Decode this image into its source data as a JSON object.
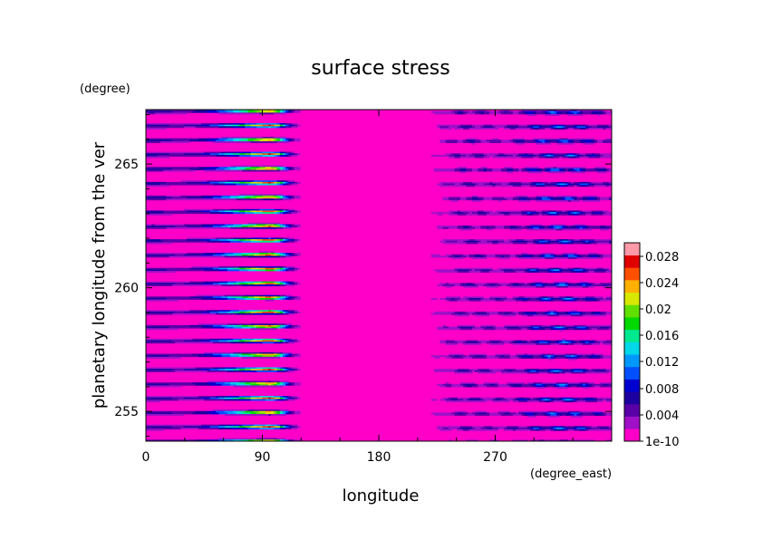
{
  "chart_data": {
    "type": "heatmap",
    "title": "surface stress",
    "xlabel": "longitude",
    "xunit": "(degree_east)",
    "ylabel": "planetary longitude from the ver",
    "yunit": "(degree)",
    "xlim": [
      0,
      360
    ],
    "ylim": [
      253.8,
      267.2
    ],
    "xticks": [
      0,
      90,
      180,
      270
    ],
    "yticks": [
      255,
      260,
      265
    ],
    "colorbar": {
      "ticks": [
        "0.028",
        "0.024",
        "0.02",
        "0.016",
        "0.012",
        "0.008",
        "0.004",
        "1e-10"
      ],
      "levels": [
        1e-10,
        0.002,
        0.004,
        0.006,
        0.008,
        0.01,
        0.012,
        0.014,
        0.016,
        0.018,
        0.02,
        0.022,
        0.024,
        0.026,
        0.028,
        0.03
      ],
      "colors": [
        "#ff00c8",
        "#a010c8",
        "#5a00a8",
        "#1c00a0",
        "#0000d0",
        "#0050ff",
        "#0098ff",
        "#00d8e8",
        "#00e890",
        "#00d800",
        "#60e000",
        "#d8e800",
        "#ffb000",
        "#ff5000",
        "#e00000",
        "#ff9aa8"
      ]
    },
    "band_period_deg": 0.58,
    "band_peak_lon_deg": 95
  }
}
